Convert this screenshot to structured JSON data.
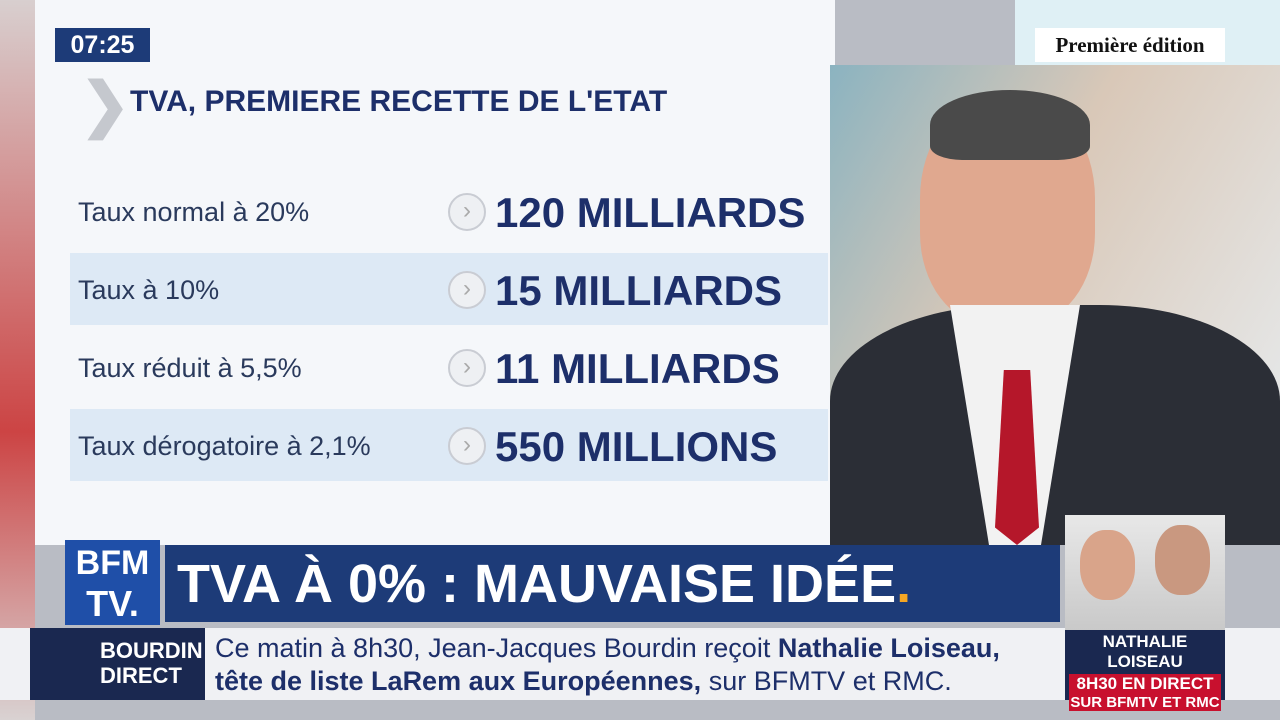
{
  "clock": "07:25",
  "edition": "Première édition",
  "panel": {
    "title": "TVA, PREMIERE RECETTE DE L'ETAT",
    "rows": [
      [
        "Taux normal à 20%",
        "120 MILLIARDS"
      ],
      [
        "Taux à 10%",
        "15 MILLIARDS"
      ],
      [
        "Taux réduit à 5,5%",
        "11 MILLIARDS"
      ],
      [
        "Taux dérogatoire à 2,1%",
        "550 MILLIONS"
      ]
    ]
  },
  "logo": {
    "top": "BFM",
    "bottom": "TV."
  },
  "headline": {
    "text": "TVA À 0% : MAUVAISE IDÉE",
    "dot": "."
  },
  "ticker": {
    "show": [
      "BOURDIN",
      "DIRECT"
    ],
    "line1": [
      "Ce matin à 8h30, Jean-Jacques Bourdin reçoit",
      "Nathalie Loiseau,"
    ],
    "line2": [
      "tête de liste LaRem aux Européennes,",
      "sur BFMTV et RMC."
    ]
  },
  "guest": {
    "name": "NATHALIE LOISEAU",
    "line1": "8H30 EN DIRECT",
    "line2": "SUR BFMTV ET RMC"
  }
}
